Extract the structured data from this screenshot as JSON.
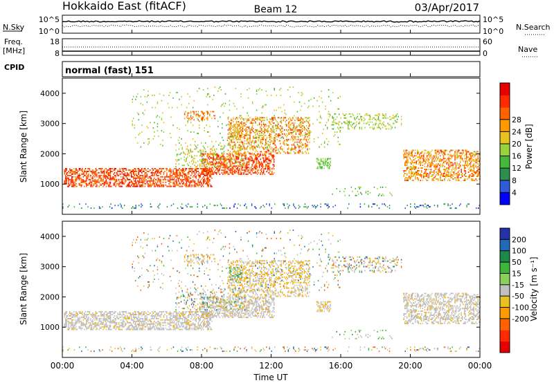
{
  "header": {
    "title": "Hokkaido East (fitACF)",
    "beam": "Beam 12",
    "date": "03/Apr/2017"
  },
  "params": {
    "nsky_label": "N.Sky",
    "nsearch_label": "N.Search",
    "noise_ticks": [
      "10^5",
      "10^0"
    ],
    "freq_label": "Freq.",
    "freq_unit": "[MHz]",
    "freq_ticks": [
      "18",
      "8"
    ],
    "nave_label": "Nave",
    "nave_ticks": [
      "60",
      "0"
    ],
    "cpid_label": "CPID",
    "cpid_value": "normal (fast) 151"
  },
  "chart_data": [
    {
      "type": "heatmap",
      "panel": "power",
      "ylabel": "Slant Range [km]",
      "xlabel": "Time UT",
      "x_ticks": [
        "00:00",
        "04:00",
        "08:00",
        "12:00",
        "16:00",
        "20:00",
        "00:00"
      ],
      "x_tick_hours": [
        0,
        4,
        8,
        12,
        16,
        20,
        24
      ],
      "y_ticks": [
        1000,
        2000,
        3000,
        4000
      ],
      "ylim": [
        0,
        4500
      ],
      "xlim_hours": [
        0,
        24
      ],
      "colorbar": {
        "label": "Power [dB]",
        "ticks": [
          "4",
          "8",
          "12",
          "16",
          "20",
          "24",
          "28"
        ],
        "colors": [
          "#0000ff",
          "#2e5bd6",
          "#2d8f4e",
          "#45b83c",
          "#9ad23a",
          "#e8c21e",
          "#ff9b00",
          "#ff6200",
          "#ff2a00",
          "#e60000"
        ]
      }
    },
    {
      "type": "heatmap",
      "panel": "velocity",
      "ylabel": "Slant Range [km]",
      "xlabel": "Time UT",
      "x_ticks": [
        "00:00",
        "04:00",
        "08:00",
        "12:00",
        "16:00",
        "20:00",
        "00:00"
      ],
      "x_tick_hours": [
        0,
        4,
        8,
        12,
        16,
        20,
        24
      ],
      "y_ticks": [
        1000,
        2000,
        3000,
        4000
      ],
      "ylim": [
        0,
        4500
      ],
      "xlim_hours": [
        0,
        24
      ],
      "colorbar": {
        "label": "Velocity [m s⁻¹]",
        "ticks": [
          "200",
          "100",
          "50",
          "15",
          "-15",
          "-50",
          "-100",
          "-200"
        ],
        "colors": [
          "#2432a8",
          "#1f6bb8",
          "#1e8a4a",
          "#3fb43a",
          "#8bd05a",
          "#c0c0c0",
          "#e8c21e",
          "#ff9b00",
          "#ff6200",
          "#ff2a00",
          "#e60000"
        ]
      }
    }
  ]
}
